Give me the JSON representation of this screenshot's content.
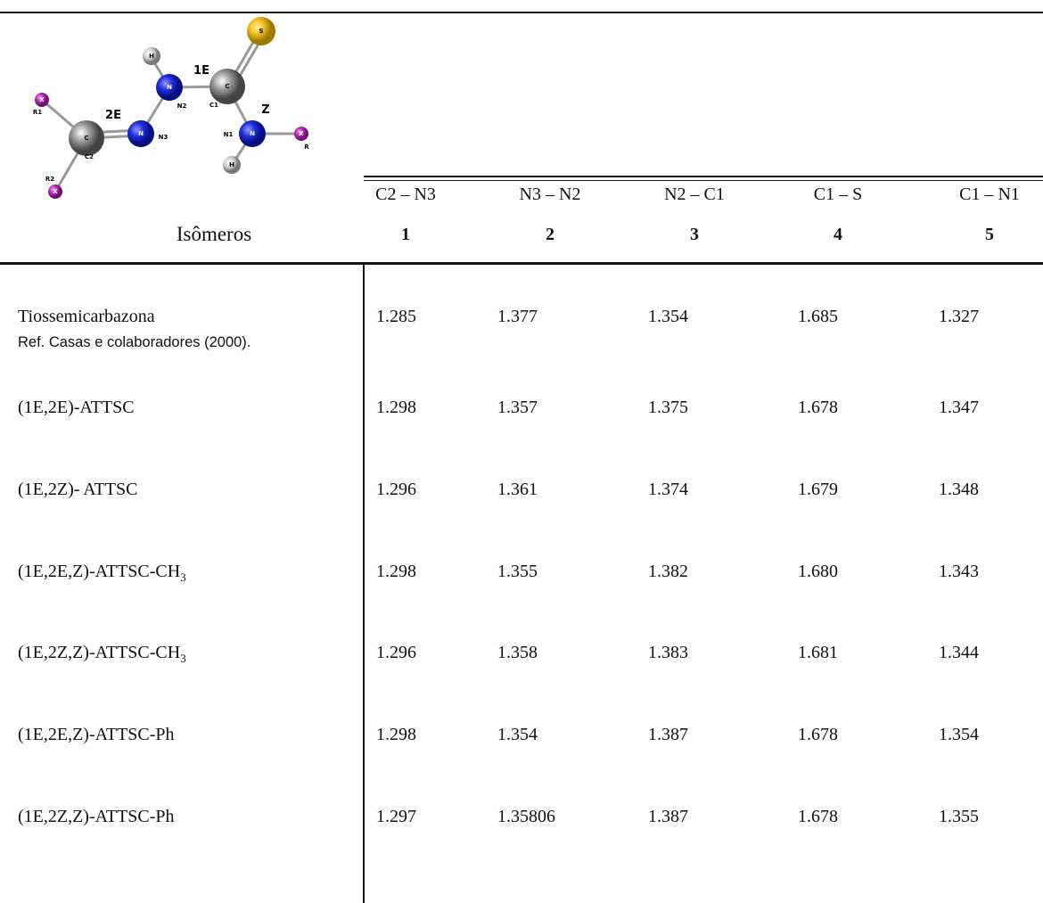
{
  "diagram": {
    "atoms": [
      "X",
      "C",
      "N",
      "N",
      "H",
      "C",
      "S",
      "N",
      "H",
      "X",
      "X"
    ],
    "labels": [
      "R1",
      "2E",
      "C2",
      "N3",
      "N2",
      "1E",
      "C1",
      "Z",
      "N1",
      "R",
      "R2"
    ]
  },
  "table": {
    "bonds": [
      "C2 – N3",
      "N3 – N2",
      "N2 – C1",
      "C1 – S",
      "C1 – N1"
    ],
    "numbers": [
      "1",
      "2",
      "3",
      "4",
      "5"
    ],
    "row_header": "Isômeros",
    "rows": [
      {
        "label": "Tiossemicarbazona",
        "note": "Ref. Casas e colaboradores (2000).",
        "values": [
          "1.285",
          "1.377",
          "1.354",
          "1.685",
          "1.327"
        ]
      },
      {
        "label": "(1E,2E)-ATTSC",
        "values": [
          "1.298",
          "1.357",
          "1.375",
          "1.678",
          "1.347"
        ]
      },
      {
        "label": "(1E,2Z)- ATTSC",
        "values": [
          "1.296",
          "1.361",
          "1.374",
          "1.679",
          "1.348"
        ]
      },
      {
        "label": "(1E,2E,Z)-ATTSC-CH",
        "label_sub": "3",
        "values": [
          "1.298",
          "1.355",
          "1.382",
          "1.680",
          "1.343"
        ]
      },
      {
        "label": "(1E,2Z,Z)-ATTSC-CH",
        "label_sub": "3",
        "values": [
          "1.296",
          "1.358",
          "1.383",
          "1.681",
          "1.344"
        ]
      },
      {
        "label": "(1E,2E,Z)-ATTSC-Ph",
        "values": [
          "1.298",
          "1.354",
          "1.387",
          "1.678",
          "1.354"
        ]
      },
      {
        "label": "(1E,2Z,Z)-ATTSC-Ph",
        "values": [
          "1.297",
          "1.35806",
          "1.387",
          "1.678",
          "1.355"
        ]
      }
    ]
  }
}
